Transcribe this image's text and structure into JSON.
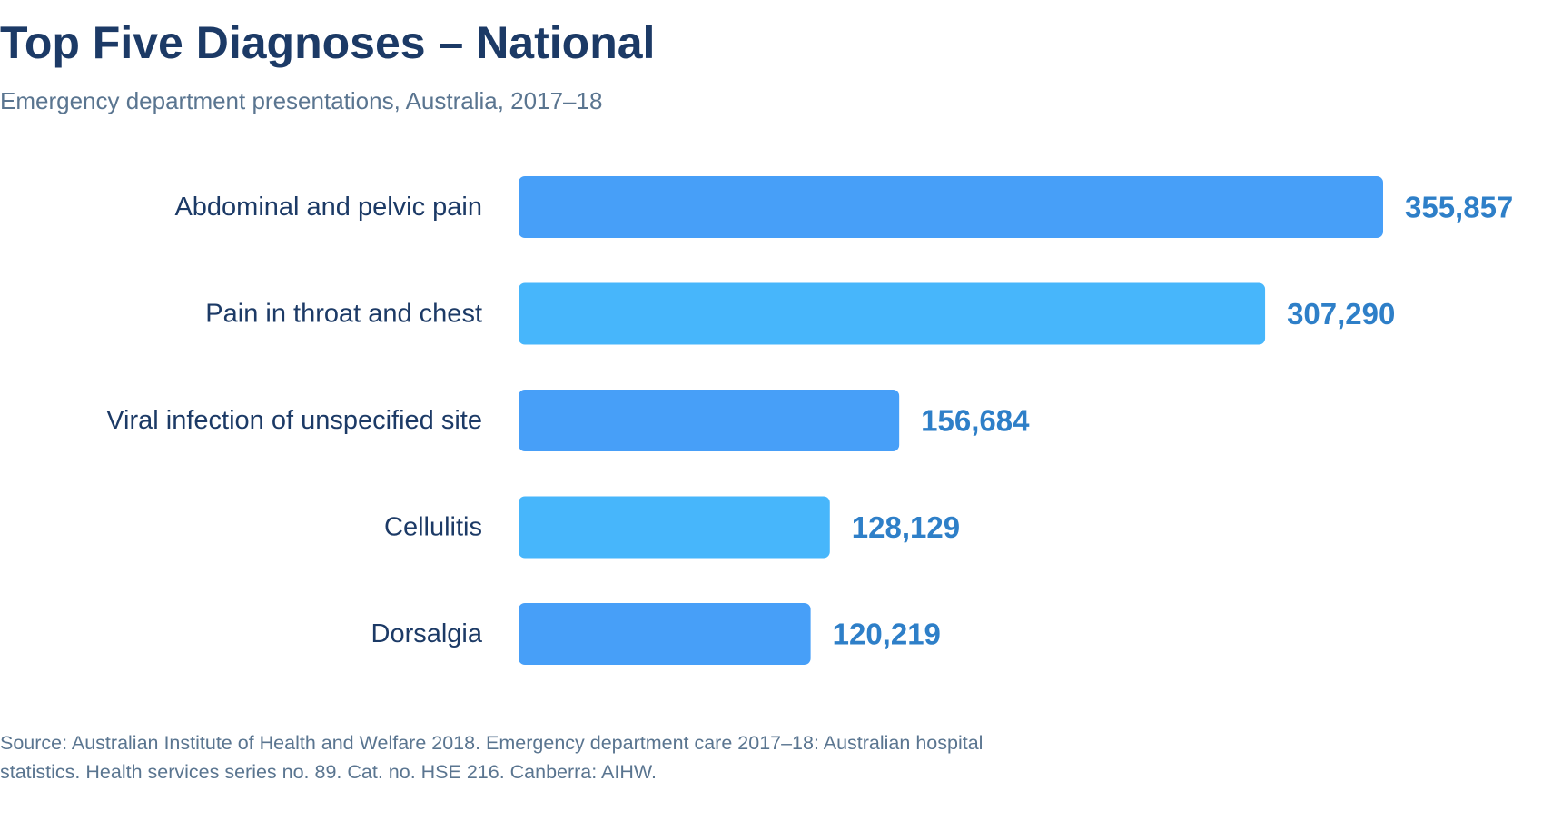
{
  "header": {
    "title": "Top Five Diagnoses – National",
    "subtitle": "Emergency department presentations, Australia, 2017–18"
  },
  "footer": {
    "source": "Source: Australian Institute of Health and Welfare 2018. Emergency department care 2017–18: Australian hospital statistics. Health services series no. 89. Cat. no. HSE 216. Canberra: AIHW."
  },
  "chart_data": {
    "type": "bar",
    "orientation": "horizontal",
    "title": "Top Five Diagnoses – National",
    "subtitle": "Emergency department presentations, Australia, 2017–18",
    "categories": [
      "Abdominal and pelvic pain",
      "Pain in throat and chest",
      "Viral infection of unspecified site",
      "Cellulitis",
      "Dorsalgia"
    ],
    "values": [
      355857,
      307290,
      156684,
      128129,
      120219
    ],
    "value_labels": [
      "355,857",
      "307,290",
      "156,684",
      "128,129",
      "120,219"
    ],
    "bar_colors": [
      "#479ff8",
      "#47b6fb",
      "#479ff8",
      "#47b6fb",
      "#479ff8"
    ],
    "label_color": "#1c3a66",
    "value_label_color": "#2e7fc8",
    "xlim": [
      0,
      355857
    ],
    "grid": false,
    "legend": "none"
  }
}
